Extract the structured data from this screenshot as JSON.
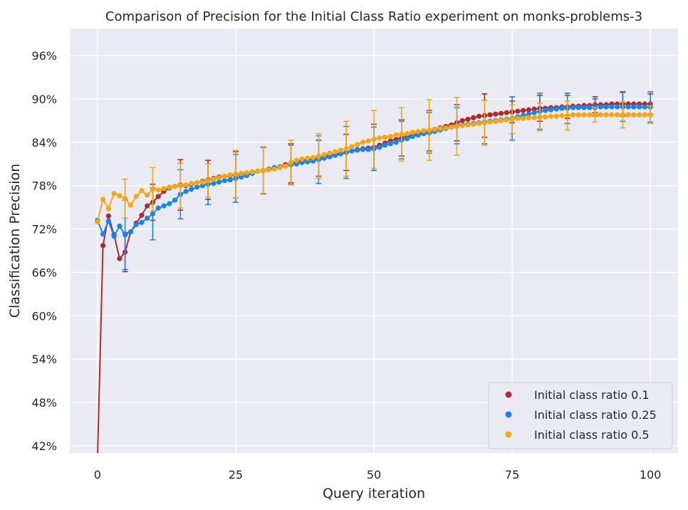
{
  "chart_data": {
    "type": "line",
    "title": "Comparison of Precision for the Initial Class Ratio experiment on monks-problems-3",
    "xlabel": "Query iteration",
    "ylabel": "Classification Precision",
    "xlim": [
      -5,
      105
    ],
    "ylim": [
      0.41,
      0.9975
    ],
    "xticks": [
      0,
      25,
      50,
      75,
      100
    ],
    "yticks": [
      0.42,
      0.48,
      0.54,
      0.6,
      0.66,
      0.72,
      0.78,
      0.84,
      0.9,
      0.96
    ],
    "ytick_format": "percent",
    "grid": true,
    "legend_position": "lower-right",
    "x": [
      0,
      1,
      2,
      3,
      4,
      5,
      6,
      7,
      8,
      9,
      10,
      11,
      12,
      13,
      14,
      15,
      16,
      17,
      18,
      19,
      20,
      21,
      22,
      23,
      24,
      25,
      26,
      27,
      28,
      29,
      30,
      31,
      32,
      33,
      34,
      35,
      36,
      37,
      38,
      39,
      40,
      41,
      42,
      43,
      44,
      45,
      46,
      47,
      48,
      49,
      50,
      51,
      52,
      53,
      54,
      55,
      56,
      57,
      58,
      59,
      60,
      61,
      62,
      63,
      64,
      65,
      66,
      67,
      68,
      69,
      70,
      71,
      72,
      73,
      74,
      75,
      76,
      77,
      78,
      79,
      80,
      81,
      82,
      83,
      84,
      85,
      86,
      87,
      88,
      89,
      90,
      91,
      92,
      93,
      94,
      95,
      96,
      97,
      98,
      99,
      100
    ],
    "series": [
      {
        "name": "Initial class ratio 0.1",
        "color": "#b22a2e",
        "values": [
          0.4,
          0.697,
          0.738,
          0.712,
          0.679,
          0.688,
          0.716,
          0.728,
          0.739,
          0.752,
          0.757,
          0.765,
          0.772,
          0.777,
          0.779,
          0.781,
          0.78,
          0.782,
          0.784,
          0.786,
          0.788,
          0.79,
          0.792,
          0.793,
          0.794,
          0.795,
          0.796,
          0.797,
          0.799,
          0.8,
          0.801,
          0.802,
          0.804,
          0.806,
          0.809,
          0.811,
          0.813,
          0.815,
          0.816,
          0.817,
          0.818,
          0.82,
          0.822,
          0.823,
          0.825,
          0.826,
          0.828,
          0.83,
          0.831,
          0.832,
          0.833,
          0.836,
          0.839,
          0.842,
          0.844,
          0.846,
          0.848,
          0.85,
          0.852,
          0.854,
          0.856,
          0.858,
          0.86,
          0.862,
          0.864,
          0.867,
          0.87,
          0.872,
          0.874,
          0.876,
          0.877,
          0.878,
          0.879,
          0.88,
          0.881,
          0.882,
          0.883,
          0.884,
          0.885,
          0.886,
          0.887,
          0.887,
          0.888,
          0.888,
          0.889,
          0.889,
          0.89,
          0.89,
          0.891,
          0.891,
          0.892,
          0.892,
          0.892,
          0.893,
          0.893,
          0.893,
          0.893,
          0.893,
          0.893,
          0.893,
          0.893
        ],
        "err": [
          0,
          0,
          0,
          0,
          0,
          0.027,
          0,
          0,
          0,
          0,
          0.025,
          0,
          0,
          0,
          0,
          0.035,
          0,
          0,
          0,
          0,
          0.027,
          0,
          0,
          0,
          0,
          0.032,
          0,
          0,
          0,
          0,
          0.032,
          0,
          0,
          0,
          0,
          0.027,
          0,
          0,
          0,
          0,
          0.025,
          0,
          0,
          0,
          0,
          0.025,
          0,
          0,
          0,
          0,
          0.032,
          0,
          0,
          0,
          0,
          0.025,
          0,
          0,
          0,
          0,
          0.028,
          0,
          0,
          0,
          0,
          0.025,
          0,
          0,
          0,
          0,
          0.03,
          0,
          0,
          0,
          0,
          0.015,
          0,
          0,
          0,
          0,
          0.018,
          0,
          0,
          0,
          0,
          0.016,
          0,
          0,
          0,
          0,
          0.011,
          0,
          0,
          0,
          0,
          0.017,
          0,
          0,
          0,
          0,
          0.014
        ]
      },
      {
        "name": "Initial class ratio 0.25",
        "color": "#1785f0",
        "values": [
          0.732,
          0.713,
          0.731,
          0.71,
          0.724,
          0.712,
          0.716,
          0.726,
          0.729,
          0.735,
          0.741,
          0.749,
          0.752,
          0.755,
          0.76,
          0.768,
          0.772,
          0.775,
          0.778,
          0.78,
          0.782,
          0.783,
          0.785,
          0.787,
          0.788,
          0.79,
          0.792,
          0.794,
          0.797,
          0.8,
          0.801,
          0.803,
          0.805,
          0.806,
          0.807,
          0.809,
          0.81,
          0.812,
          0.813,
          0.814,
          0.816,
          0.818,
          0.82,
          0.822,
          0.824,
          0.826,
          0.828,
          0.829,
          0.83,
          0.83,
          0.831,
          0.833,
          0.836,
          0.838,
          0.84,
          0.843,
          0.845,
          0.848,
          0.85,
          0.852,
          0.853,
          0.855,
          0.857,
          0.859,
          0.861,
          0.863,
          0.864,
          0.865,
          0.866,
          0.867,
          0.868,
          0.869,
          0.87,
          0.871,
          0.872,
          0.873,
          0.875,
          0.877,
          0.879,
          0.881,
          0.883,
          0.884,
          0.885,
          0.886,
          0.887,
          0.887,
          0.888,
          0.888,
          0.888,
          0.888,
          0.888,
          0.889,
          0.889,
          0.889,
          0.889,
          0.889,
          0.889,
          0.889,
          0.889,
          0.889,
          0.889
        ],
        "err": [
          0,
          0,
          0,
          0,
          0,
          0.048,
          0,
          0,
          0,
          0,
          0.036,
          0,
          0,
          0,
          0,
          0.034,
          0,
          0,
          0,
          0,
          0.028,
          0,
          0,
          0,
          0,
          0.033,
          0,
          0,
          0,
          0,
          0.032,
          0,
          0,
          0,
          0,
          0.027,
          0,
          0,
          0,
          0,
          0.033,
          0,
          0,
          0,
          0,
          0.036,
          0,
          0,
          0,
          0,
          0.03,
          0,
          0,
          0,
          0,
          0.026,
          0,
          0,
          0,
          0,
          0.028,
          0,
          0,
          0,
          0,
          0.025,
          0,
          0,
          0,
          0,
          0.03,
          0,
          0,
          0,
          0,
          0.03,
          0,
          0,
          0,
          0,
          0.025,
          0,
          0,
          0,
          0,
          0.021,
          0,
          0,
          0,
          0,
          0.012,
          0,
          0,
          0,
          0,
          0.02,
          0,
          0,
          0,
          0,
          0.021
        ]
      },
      {
        "name": "Initial class ratio 0.5",
        "color": "#f5a712",
        "values": [
          0.73,
          0.761,
          0.748,
          0.769,
          0.766,
          0.762,
          0.753,
          0.765,
          0.773,
          0.767,
          0.775,
          0.774,
          0.776,
          0.778,
          0.779,
          0.78,
          0.781,
          0.783,
          0.784,
          0.785,
          0.787,
          0.789,
          0.791,
          0.793,
          0.795,
          0.796,
          0.797,
          0.798,
          0.799,
          0.8,
          0.801,
          0.802,
          0.803,
          0.805,
          0.807,
          0.812,
          0.815,
          0.817,
          0.818,
          0.819,
          0.821,
          0.823,
          0.825,
          0.827,
          0.829,
          0.831,
          0.834,
          0.837,
          0.84,
          0.842,
          0.844,
          0.846,
          0.847,
          0.848,
          0.85,
          0.851,
          0.852,
          0.854,
          0.855,
          0.856,
          0.857,
          0.858,
          0.859,
          0.86,
          0.861,
          0.862,
          0.863,
          0.864,
          0.865,
          0.866,
          0.867,
          0.868,
          0.869,
          0.87,
          0.871,
          0.872,
          0.873,
          0.873,
          0.874,
          0.874,
          0.875,
          0.875,
          0.876,
          0.876,
          0.877,
          0.877,
          0.878,
          0.878,
          0.878,
          0.878,
          0.878,
          0.878,
          0.878,
          0.878,
          0.878,
          0.878,
          0.878,
          0.878,
          0.878,
          0.878,
          0.878
        ],
        "err": [
          0,
          0,
          0,
          0,
          0,
          0.027,
          0,
          0,
          0,
          0,
          0.03,
          0,
          0,
          0,
          0,
          0.031,
          0,
          0,
          0,
          0,
          0.023,
          0,
          0,
          0,
          0,
          0.033,
          0,
          0,
          0,
          0,
          0.033,
          0,
          0,
          0,
          0,
          0.031,
          0,
          0,
          0,
          0,
          0.031,
          0,
          0,
          0,
          0,
          0.038,
          0,
          0,
          0,
          0,
          0.04,
          0,
          0,
          0,
          0,
          0.037,
          0,
          0,
          0,
          0,
          0.042,
          0,
          0,
          0,
          0,
          0.04,
          0,
          0,
          0,
          0,
          0.031,
          0,
          0,
          0,
          0,
          0.02,
          0,
          0,
          0,
          0,
          0.019,
          0,
          0,
          0,
          0,
          0.02,
          0,
          0,
          0,
          0,
          0.01,
          0,
          0,
          0,
          0,
          0.018,
          0,
          0,
          0,
          0,
          0.012
        ]
      }
    ]
  }
}
